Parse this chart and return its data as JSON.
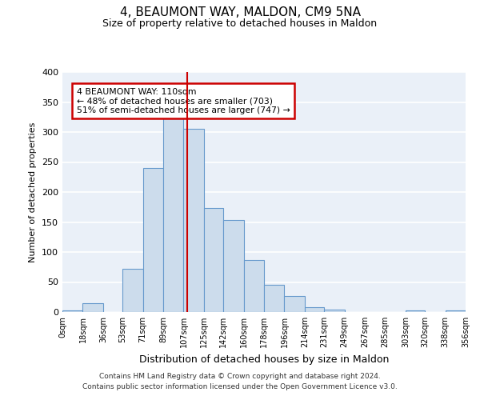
{
  "title": "4, BEAUMONT WAY, MALDON, CM9 5NA",
  "subtitle": "Size of property relative to detached houses in Maldon",
  "xlabel": "Distribution of detached houses by size in Maldon",
  "ylabel": "Number of detached properties",
  "bar_edges": [
    0,
    18,
    36,
    53,
    71,
    89,
    107,
    125,
    142,
    160,
    178,
    196,
    214,
    231,
    249,
    267,
    285,
    303,
    320,
    338,
    356
  ],
  "bar_heights": [
    3,
    15,
    0,
    72,
    240,
    335,
    305,
    174,
    154,
    87,
    45,
    27,
    8,
    4,
    0,
    0,
    0,
    3,
    0,
    3
  ],
  "bar_color": "#ccdcec",
  "bar_edge_color": "#6699cc",
  "tick_labels": [
    "0sqm",
    "18sqm",
    "36sqm",
    "53sqm",
    "71sqm",
    "89sqm",
    "107sqm",
    "125sqm",
    "142sqm",
    "160sqm",
    "178sqm",
    "196sqm",
    "214sqm",
    "231sqm",
    "249sqm",
    "267sqm",
    "285sqm",
    "303sqm",
    "320sqm",
    "338sqm",
    "356sqm"
  ],
  "vline_x": 110,
  "vline_color": "#cc0000",
  "annotation_text_line1": "4 BEAUMONT WAY: 110sqm",
  "annotation_text_line2": "← 48% of detached houses are smaller (703)",
  "annotation_text_line3": "51% of semi-detached houses are larger (747) →",
  "annotation_box_color": "#ffffff",
  "annotation_box_edge_color": "#cc0000",
  "ylim": [
    0,
    400
  ],
  "yticks": [
    0,
    50,
    100,
    150,
    200,
    250,
    300,
    350,
    400
  ],
  "bg_color": "#eaf0f8",
  "grid_color": "#ffffff",
  "footer_line1": "Contains HM Land Registry data © Crown copyright and database right 2024.",
  "footer_line2": "Contains public sector information licensed under the Open Government Licence v3.0."
}
